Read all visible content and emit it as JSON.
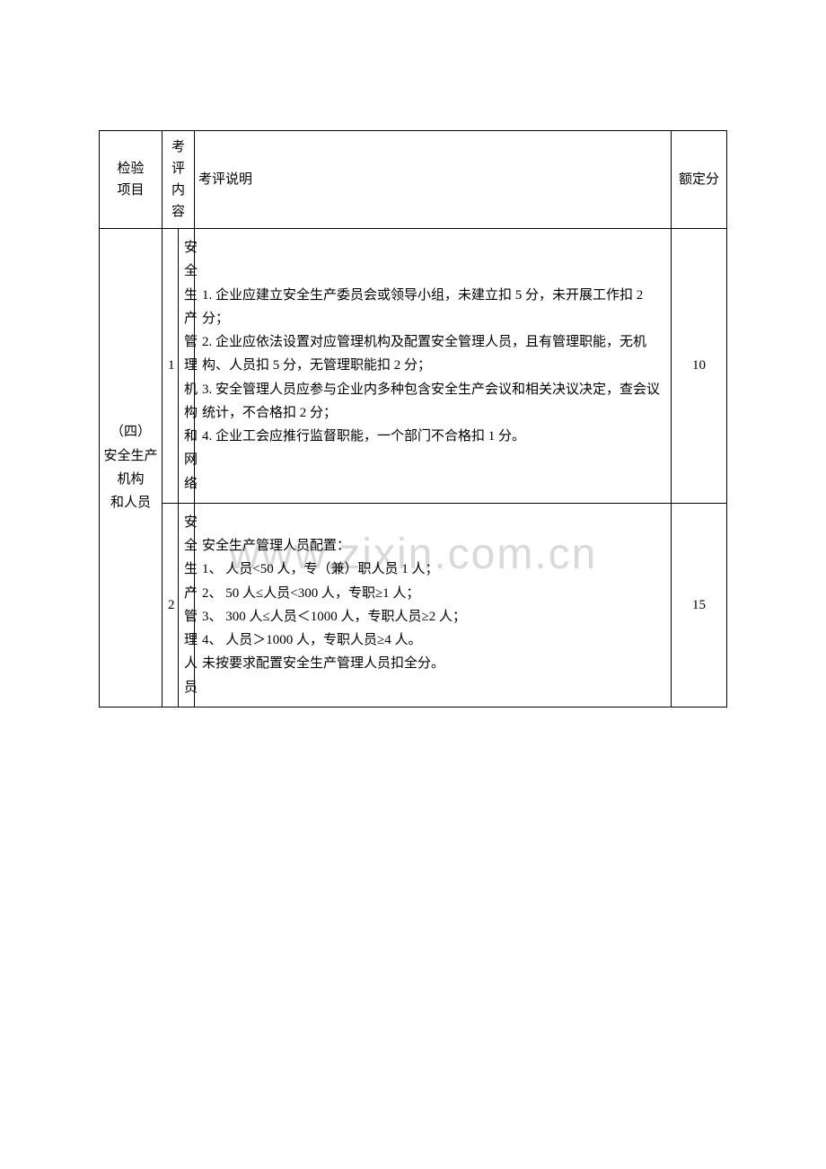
{
  "table": {
    "headers": {
      "category": "检验\n项目",
      "content": "考评内容",
      "description": "考评说明",
      "score": "额定分"
    },
    "category_label": "（四）\n安全生产\n机构\n和人员",
    "rows": [
      {
        "num": "1",
        "content": "安全生产管理机构和网络",
        "description": "1. 企业应建立安全生产委员会或领导小组，未建立扣 5 分，未开展工作扣 2 分；\n2. 企业应依法设置对应管理机构及配置安全管理人员，且有管理职能，无机构、人员扣 5 分，无管理职能扣 2 分；\n3. 安全管理人员应参与企业内多种包含安全生产会议和相关决议决定，查会议统计，不合格扣 2 分；\n4. 企业工会应推行监督职能，一个部门不合格扣 1 分。",
        "score": "10"
      },
      {
        "num": "2",
        "content": "安全生产管理人员",
        "description": "安全生产管理人员配置：\n1、 人员<50 人，专（兼）职人员 1 人；\n2、 50 人≤人员<300 人，专职≥1 人；\n3、 300 人≤人员＜1000 人，专职人员≥2 人；\n4、 人员＞1000 人，专职人员≥4 人。\n未按要求配置安全生产管理人员扣全分。",
        "score": "15"
      }
    ]
  },
  "watermark": "www.zixin.com.cn",
  "colors": {
    "border": "#000000",
    "text": "#000000",
    "background": "#ffffff",
    "watermark": "#d9d9d9"
  }
}
